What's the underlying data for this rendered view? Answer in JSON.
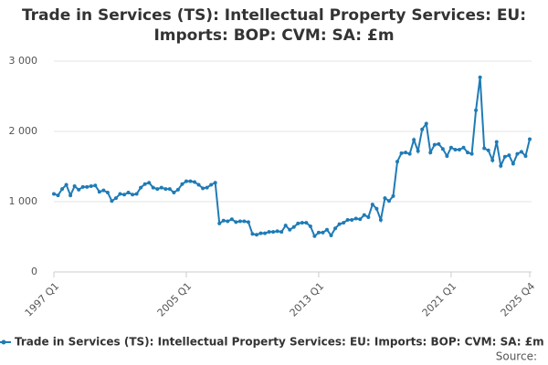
{
  "chart_data": {
    "type": "line",
    "title": "Trade in Services (TS): Intellectual Property Services: EU: Imports: BOP: CVM: SA: £m",
    "categories": [
      "1997 Q1",
      null,
      null,
      null,
      null,
      null,
      null,
      null,
      null,
      null,
      null,
      null,
      null,
      null,
      null,
      null,
      null,
      null,
      null,
      null,
      null,
      null,
      null,
      null,
      null,
      null,
      null,
      null,
      null,
      null,
      null,
      null,
      "2005 Q1",
      null,
      null,
      null,
      null,
      null,
      null,
      null,
      null,
      null,
      null,
      null,
      null,
      null,
      null,
      null,
      null,
      null,
      null,
      null,
      null,
      null,
      null,
      null,
      null,
      null,
      null,
      null,
      null,
      null,
      null,
      null,
      "2013 Q1",
      null,
      null,
      null,
      null,
      null,
      null,
      null,
      null,
      null,
      null,
      null,
      null,
      null,
      null,
      null,
      null,
      null,
      null,
      null,
      null,
      null,
      null,
      null,
      null,
      null,
      null,
      null,
      null,
      null,
      null,
      null,
      "2021 Q1",
      null,
      null,
      null,
      null,
      null,
      null,
      null,
      null,
      null,
      null,
      null,
      null,
      null,
      null,
      null,
      null,
      null,
      null,
      "2025 Q4"
    ],
    "series": [
      {
        "name": "Trade in Services (TS): Intellectual Property Services: EU: Imports: BOP: CVM: SA: £m",
        "color": "#1f7bb6",
        "values": [
          1110,
          1090,
          1180,
          1240,
          1090,
          1220,
          1170,
          1210,
          1210,
          1220,
          1230,
          1140,
          1160,
          1130,
          1010,
          1050,
          1110,
          1100,
          1130,
          1100,
          1110,
          1200,
          1250,
          1270,
          1200,
          1180,
          1200,
          1180,
          1180,
          1130,
          1170,
          1250,
          1290,
          1290,
          1280,
          1240,
          1190,
          1200,
          1240,
          1270,
          690,
          730,
          720,
          750,
          710,
          720,
          720,
          710,
          540,
          530,
          550,
          550,
          570,
          570,
          580,
          570,
          660,
          600,
          640,
          690,
          700,
          700,
          650,
          510,
          560,
          560,
          600,
          520,
          620,
          680,
          700,
          740,
          740,
          760,
          750,
          810,
          780,
          960,
          900,
          740,
          1050,
          1010,
          1080,
          1570,
          1690,
          1700,
          1680,
          1880,
          1720,
          2030,
          2110,
          1700,
          1810,
          1820,
          1750,
          1650,
          1770,
          1740,
          1740,
          1770,
          1700,
          1680,
          2300,
          2770,
          1760,
          1730,
          1590,
          1850,
          1510,
          1640,
          1660,
          1540,
          1680,
          1710,
          1650,
          1890
        ]
      }
    ],
    "ylim": [
      0,
      3000
    ],
    "yticks": [
      0,
      {
        "value": 1000,
        "label": "1 000"
      },
      {
        "value": 2000,
        "label": "2 000"
      },
      {
        "value": 3000,
        "label": "3 000"
      }
    ],
    "grid": true,
    "legend": "bottom",
    "source": "Source:"
  }
}
